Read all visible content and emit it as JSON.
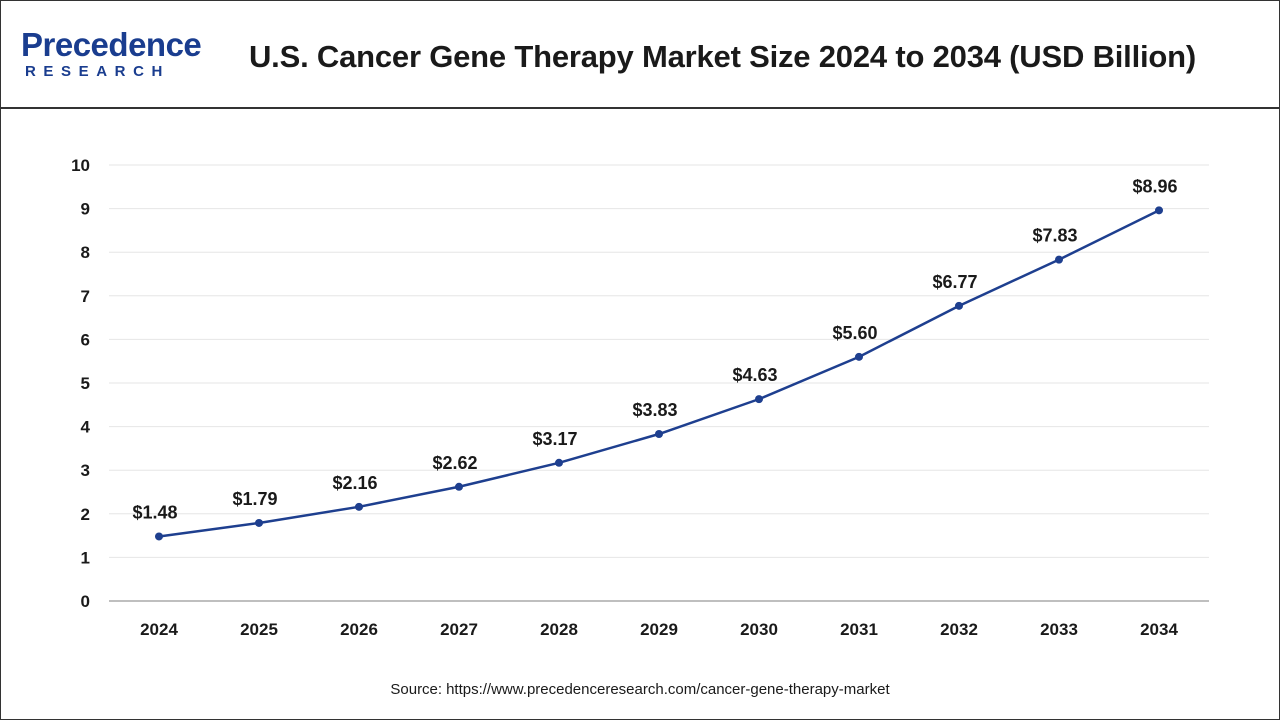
{
  "header": {
    "logo_main": "Precedence",
    "logo_sub": "RESEARCH",
    "title": "U.S. Cancer Gene Therapy Market Size 2024 to 2034 (USD Billion)"
  },
  "colors": {
    "brand_blue": "#1a3d8f",
    "line": "#1e3f8f",
    "grid": "#e6e6e6",
    "axis": "#aaaaaa",
    "text": "#1a1a1a"
  },
  "chart_data": {
    "type": "line",
    "title": "U.S. Cancer Gene Therapy Market Size 2024 to 2034 (USD Billion)",
    "xlabel": "",
    "ylabel": "",
    "categories": [
      "2024",
      "2025",
      "2026",
      "2027",
      "2028",
      "2029",
      "2030",
      "2031",
      "2032",
      "2033",
      "2034"
    ],
    "values": [
      1.48,
      1.79,
      2.16,
      2.62,
      3.17,
      3.83,
      4.63,
      5.6,
      6.77,
      7.83,
      8.96
    ],
    "data_labels": [
      "$1.48",
      "$1.79",
      "$2.16",
      "$2.62",
      "$3.17",
      "$3.83",
      "$4.63",
      "$5.60",
      "$6.77",
      "$7.83",
      "$8.96"
    ],
    "yticks": [
      0,
      1,
      2,
      3,
      4,
      5,
      6,
      7,
      8,
      9,
      10
    ],
    "ylim": [
      0,
      10
    ],
    "grid": true,
    "legend": "none"
  },
  "footer": {
    "source_label": "Source:",
    "source_url": "https://www.precedenceresearch.com/cancer-gene-therapy-market"
  }
}
